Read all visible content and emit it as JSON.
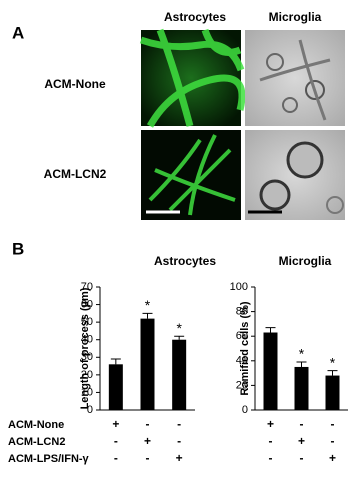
{
  "panel_a": {
    "label": "A",
    "columns": [
      "Astrocytes",
      "Microglia"
    ],
    "rows": [
      "ACM-None",
      "ACM-LCN2"
    ]
  },
  "panel_b": {
    "label": "B",
    "condition_labels": [
      "ACM-None",
      "ACM-LCN2",
      "ACM-LPS/IFN-γ"
    ]
  },
  "chart_data": [
    {
      "type": "bar",
      "title": "Astrocytes",
      "y_label": "Length of process (µm)",
      "categories": [
        null,
        null,
        null
      ],
      "values": [
        26,
        52,
        40
      ],
      "errors": [
        3,
        3,
        2
      ],
      "significance": [
        null,
        "*",
        "*"
      ],
      "color": "#000000",
      "ylim": [
        0,
        70
      ],
      "yticks": [
        0,
        10,
        20,
        30,
        40,
        50,
        60,
        70
      ],
      "signs": [
        [
          "+",
          "-",
          "-"
        ],
        [
          "-",
          "+",
          "-"
        ],
        [
          "-",
          "-",
          "+"
        ]
      ]
    },
    {
      "type": "bar",
      "title": "Microglia",
      "y_label": "Ramified cells (%)",
      "categories": [
        null,
        null,
        null
      ],
      "values": [
        63,
        35,
        28
      ],
      "errors": [
        4,
        4,
        4
      ],
      "significance": [
        null,
        "*",
        "*"
      ],
      "color": "#000000",
      "ylim": [
        0,
        100
      ],
      "yticks": [
        0,
        20,
        40,
        60,
        80,
        100
      ],
      "signs": [
        [
          "+",
          "-",
          "-"
        ],
        [
          "-",
          "+",
          "-"
        ],
        [
          "-",
          "-",
          "+"
        ]
      ]
    }
  ]
}
